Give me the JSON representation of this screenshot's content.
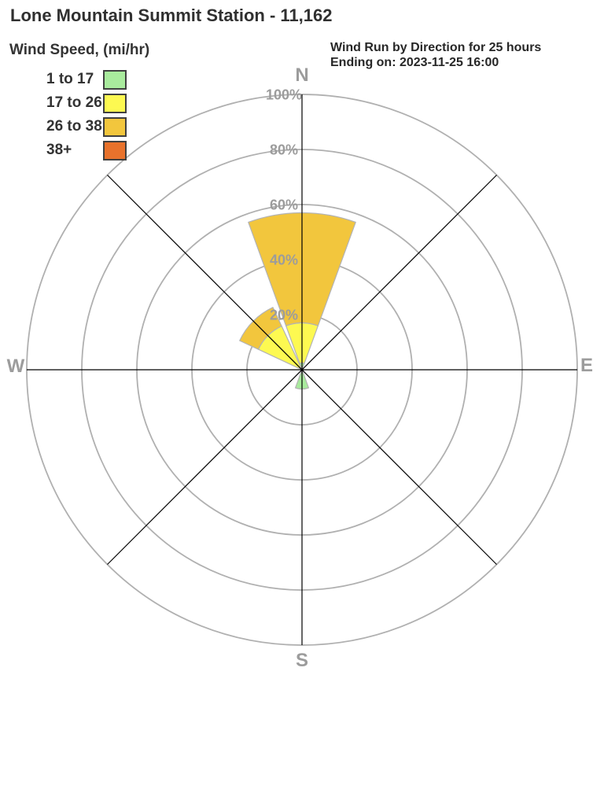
{
  "title": "Lone Mountain Summit Station - 11,162",
  "subtitle": {
    "line1": "Wind Run by Direction for 25 hours",
    "line2": "Ending on: 2023-11-25 16:00"
  },
  "legend": {
    "title": "Wind Speed, (mi/hr)"
  },
  "colors": {
    "ring": "#b0b0b0",
    "axis": "#000000",
    "petal_outline": "#b3b3b3",
    "muted_label": "#9c9c9c",
    "heading_text": "#303030"
  },
  "chart_data": {
    "type": "windrose",
    "title": "Wind Run by Direction for 25 hours",
    "ending_on": "2023-11-25 16:00",
    "units": "percent of wind run",
    "compass_labels": [
      "N",
      "E",
      "S",
      "W"
    ],
    "rings": [
      {
        "value": 20,
        "label": "20%"
      },
      {
        "value": 40,
        "label": "40%"
      },
      {
        "value": 60,
        "label": "60%"
      },
      {
        "value": 80,
        "label": "80%"
      },
      {
        "value": 100,
        "label": "100%"
      }
    ],
    "sector_width_deg": 40,
    "speed_bins": [
      {
        "label": "1 to 17",
        "color": "#a9eb9d"
      },
      {
        "label": "17 to 26",
        "color": "#fdf951"
      },
      {
        "label": "26 to 38",
        "color": "#f2c63d"
      },
      {
        "label": "38+",
        "color": "#e8722c"
      }
    ],
    "petals": [
      {
        "direction": "N",
        "angle_deg": 0,
        "total_pct": 57,
        "segments": [
          {
            "bin": "1 to 17",
            "from_pct": 0,
            "to_pct": 2.5
          },
          {
            "bin": "17 to 26",
            "from_pct": 2.5,
            "to_pct": 17
          },
          {
            "bin": "26 to 38",
            "from_pct": 17,
            "to_pct": 57
          }
        ]
      },
      {
        "direction": "NW",
        "angle_deg": 315,
        "total_pct": 25,
        "segments": [
          {
            "bin": "17 to 26",
            "from_pct": 0,
            "to_pct": 17.5
          },
          {
            "bin": "26 to 38",
            "from_pct": 17.5,
            "to_pct": 25
          }
        ]
      },
      {
        "direction": "S",
        "angle_deg": 180,
        "total_pct": 7,
        "segments": [
          {
            "bin": "1 to 17",
            "from_pct": 0,
            "to_pct": 7
          }
        ]
      }
    ]
  }
}
